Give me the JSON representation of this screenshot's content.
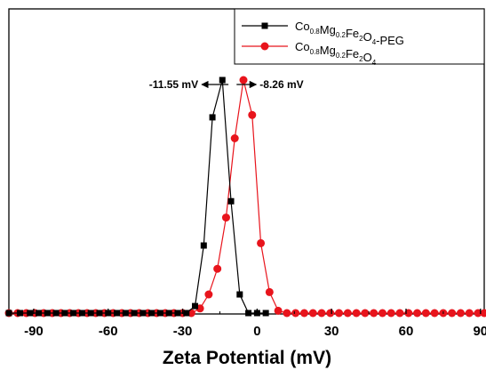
{
  "chart_data": {
    "type": "line",
    "xlabel": "Zeta Potential (mV)",
    "ylabel": "",
    "xlim": [
      -100,
      91.5
    ],
    "ylim": [
      0,
      100
    ],
    "xticks": [
      -90,
      -60,
      -30,
      0,
      30,
      60,
      90
    ],
    "legend_position": "top-right",
    "grid": false,
    "series": [
      {
        "name": "Co0.8Mg0.2Fe2O4-PEG",
        "color": "#000000",
        "marker": "square",
        "x": [
          -100,
          -95.5,
          -91.5,
          -88,
          -84.5,
          -81,
          -77.5,
          -74,
          -70.5,
          -67,
          -63.5,
          -60,
          -56.5,
          -53,
          -49.5,
          -46,
          -42.5,
          -39,
          -35.5,
          -32,
          -28.5,
          -25,
          -21.5,
          -18,
          -14,
          -10.5,
          -7,
          -3.5,
          0,
          3.5
        ],
        "y": [
          0,
          0,
          0,
          0,
          0,
          0,
          0,
          0,
          0,
          0,
          0,
          0,
          0,
          0,
          0,
          0,
          0,
          0,
          0,
          0,
          0,
          3,
          29,
          84,
          100,
          48,
          8,
          0,
          0,
          0
        ]
      },
      {
        "name": "Co0.8Mg0.2Fe2O4",
        "color": "#e8141c",
        "marker": "circle",
        "x": [
          -100,
          -96.5,
          -93,
          -89.5,
          -86,
          -82.5,
          -79,
          -75.5,
          -72,
          -68.5,
          -65,
          -61.5,
          -58,
          -54.5,
          -51,
          -47.5,
          -44,
          -40.5,
          -37,
          -33.5,
          -30,
          -26.5,
          -23,
          -19.5,
          -16,
          -12.5,
          -9,
          -5.5,
          -2,
          1.5,
          5,
          8.5,
          12,
          15.5,
          19,
          22.5,
          26,
          29.5,
          33,
          36.5,
          40,
          43.5,
          47,
          50.5,
          54,
          57.5,
          61,
          64.5,
          68,
          71.5,
          75,
          78.5,
          82,
          85.5,
          89,
          91.5
        ],
        "y": [
          0,
          0,
          0,
          0,
          0,
          0,
          0,
          0,
          0,
          0,
          0,
          0,
          0,
          0,
          0,
          0,
          0,
          0,
          0,
          0,
          0,
          0,
          2,
          8,
          19,
          41,
          75,
          100,
          85,
          30,
          9,
          1,
          0,
          0,
          0,
          0,
          0,
          0,
          0,
          0,
          0,
          0,
          0,
          0,
          0,
          0,
          0,
          0,
          0,
          0,
          0,
          0,
          0,
          0,
          0,
          0
        ]
      }
    ],
    "legend_entries": [
      {
        "base": "Co",
        "s1": "0.8",
        "m": "Mg",
        "s2": "0.2",
        "f": "Fe",
        "s3": "2",
        "o": "O",
        "s4": "4",
        "suffix": "-PEG"
      },
      {
        "base": "Co",
        "s1": "0.8",
        "m": "Mg",
        "s2": "0.2",
        "f": "Fe",
        "s3": "2",
        "o": "O",
        "s4": "4",
        "suffix": ""
      }
    ],
    "annotations": [
      {
        "text": "-11.55 mV",
        "x": -11.55,
        "direction": "left"
      },
      {
        "text": "-8.26 mV",
        "x": -8.26,
        "direction": "right"
      }
    ]
  }
}
